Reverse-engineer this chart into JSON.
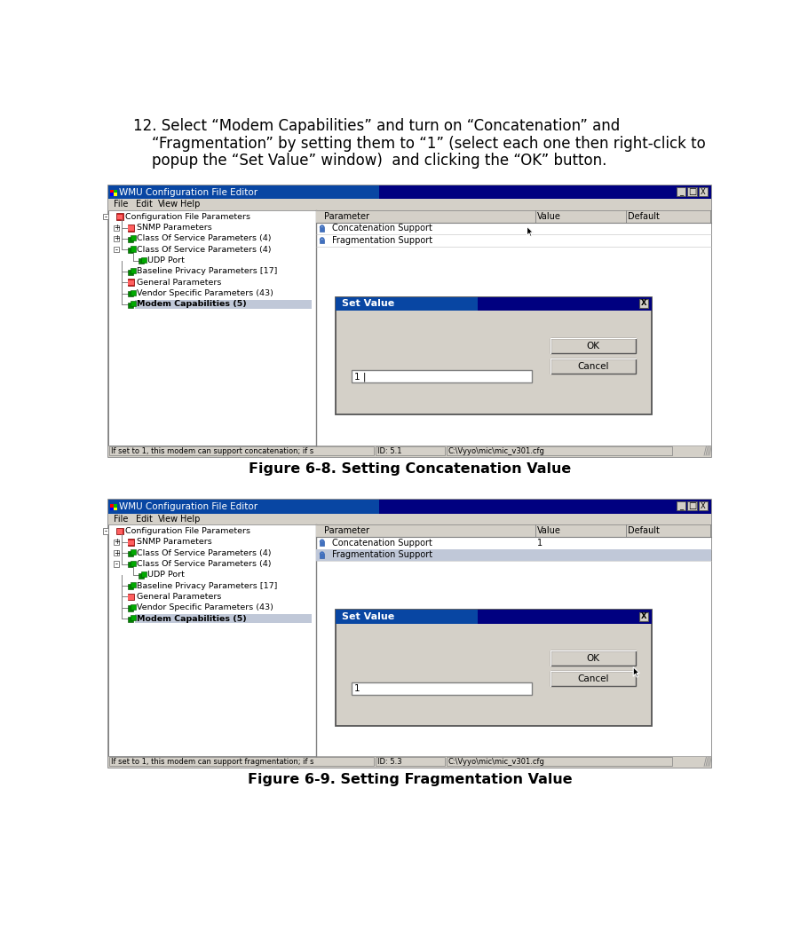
{
  "bg_color": "#ffffff",
  "page_width": 9.01,
  "page_height": 10.48,
  "intro_text_line1": "12. Select “Modem Capabilities” and turn on “Concatenation” and",
  "intro_text_line2": "    “Fragmentation” by setting them to “1” (select each one then right-click to",
  "intro_text_line3": "    popup the “Set Value” window)  and clicking the “OK” button.",
  "fig1_caption": "Figure 6-8. Setting Concatenation Value",
  "fig2_caption": "Figure 6-9. Setting Fragmentation Value",
  "win_title": "WMU Configuration File Editor",
  "menu_items": [
    "File",
    "Edit",
    "View",
    "Help"
  ],
  "tree_items": [
    {
      "label": "Configuration File Parameters",
      "indent": 0,
      "icon": "folder_red",
      "has_minus": true
    },
    {
      "label": "SNMP Parameters",
      "indent": 1,
      "icon": "red_book",
      "has_plus": true
    },
    {
      "label": "Class Of Service Parameters (4)",
      "indent": 1,
      "icon": "green_node",
      "has_plus": true
    },
    {
      "label": "Class Of Service Parameters (4)",
      "indent": 1,
      "icon": "green_node",
      "has_minus": true
    },
    {
      "label": "UDP Port",
      "indent": 2,
      "icon": "green_node"
    },
    {
      "label": "Baseline Privacy Parameters [17]",
      "indent": 1,
      "icon": "green_node"
    },
    {
      "label": "General Parameters",
      "indent": 1,
      "icon": "red_book"
    },
    {
      "label": "Vendor Specific Parameters (43)",
      "indent": 1,
      "icon": "green_node"
    },
    {
      "label": "Modem Capabilities (5)",
      "indent": 1,
      "icon": "green_node",
      "highlight": true
    }
  ],
  "param_cols": [
    "Parameter",
    "Value",
    "Default"
  ],
  "fig1_params": [
    {
      "name": "Concatenation Support",
      "value": "",
      "selected": false
    },
    {
      "name": "Fragmentation Support",
      "value": "",
      "selected": false
    }
  ],
  "fig1_dialog": {
    "title": "Set Value",
    "input_value": "1 |",
    "has_cursor_in_panel": true
  },
  "fig1_status": "If set to 1, this modem can support concatenation; if s",
  "fig1_id": "ID: 5.1",
  "fig1_path": "C:\\Vyyo\\mic\\mic_v301.cfg",
  "fig2_params": [
    {
      "name": "Concatenation Support",
      "value": "1",
      "selected": false
    },
    {
      "name": "Fragmentation Support",
      "value": "",
      "selected": true
    }
  ],
  "fig2_dialog": {
    "title": "Set Value",
    "input_value": "1",
    "has_cursor_on_ok": true
  },
  "fig2_status": "If set to 1, this modem can support fragmentation; if s",
  "fig2_id": "ID: 5.3",
  "fig2_path": "C:\\Vyyo\\mic\\mic_v301.cfg",
  "window_bg": "#d4d0c8",
  "selected_row_color": "#c0c8d8",
  "titlebar_dark": "#000080",
  "titlebar_light": "#1080c0"
}
